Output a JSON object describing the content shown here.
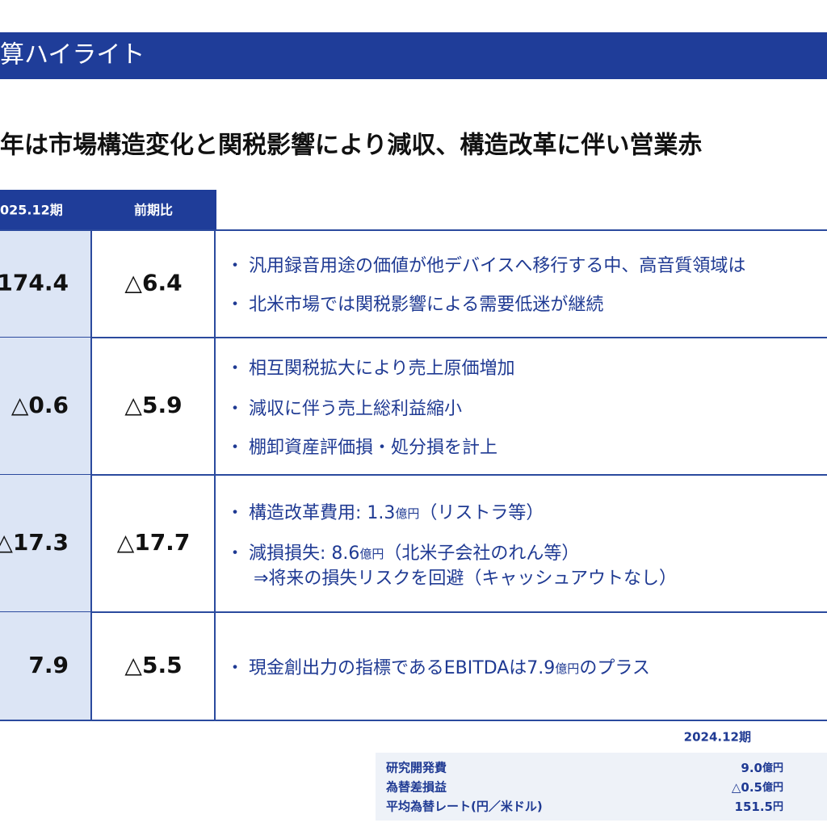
{
  "header": {
    "title": "算ハイライト"
  },
  "headline": "年は市場構造変化と関税影響により減収、構造改革に伴い営業赤",
  "table": {
    "columns": [
      "025.12期",
      "前期比"
    ],
    "rows": [
      {
        "value": "174.4",
        "change": "△6.4",
        "notes": [
          [
            "汎用録音用途の価値が他デバイスへ移行する中、高音質領域は"
          ],
          [
            "北米市場では関税影響による需要低迷が継続"
          ]
        ]
      },
      {
        "value": "△0.6",
        "change": "△5.9",
        "notes": [
          [
            "相互関税拡大により売上原価増加"
          ],
          [
            "減収に伴う売上総利益縮小"
          ],
          [
            "棚卸資産評価損・処分損を計上"
          ]
        ]
      },
      {
        "value": "△17.3",
        "change": "△17.7",
        "notes": [
          [
            "構造改革費用: 1.3",
            "億円",
            "（リストラ等）"
          ],
          [
            "減損損失: 8.6",
            "億円",
            "（北米子会社のれん等）"
          ]
        ],
        "sub": "⇒将来の損失リスクを回避（キャッシュアウトなし）"
      },
      {
        "value": "7.9",
        "change": "△5.5",
        "notes": [
          [
            "現金創出力の指標であるEBITDAは7.9",
            "億円",
            "のプラス"
          ]
        ]
      }
    ]
  },
  "footer_table": {
    "column": "2024.12期",
    "rows": [
      [
        "研究開発費",
        "9.0",
        "億円"
      ],
      [
        "為替差損益",
        "△0.5",
        "億円"
      ],
      [
        "平均為替レート(円／米ドル)",
        "151.5",
        "円"
      ]
    ]
  }
}
